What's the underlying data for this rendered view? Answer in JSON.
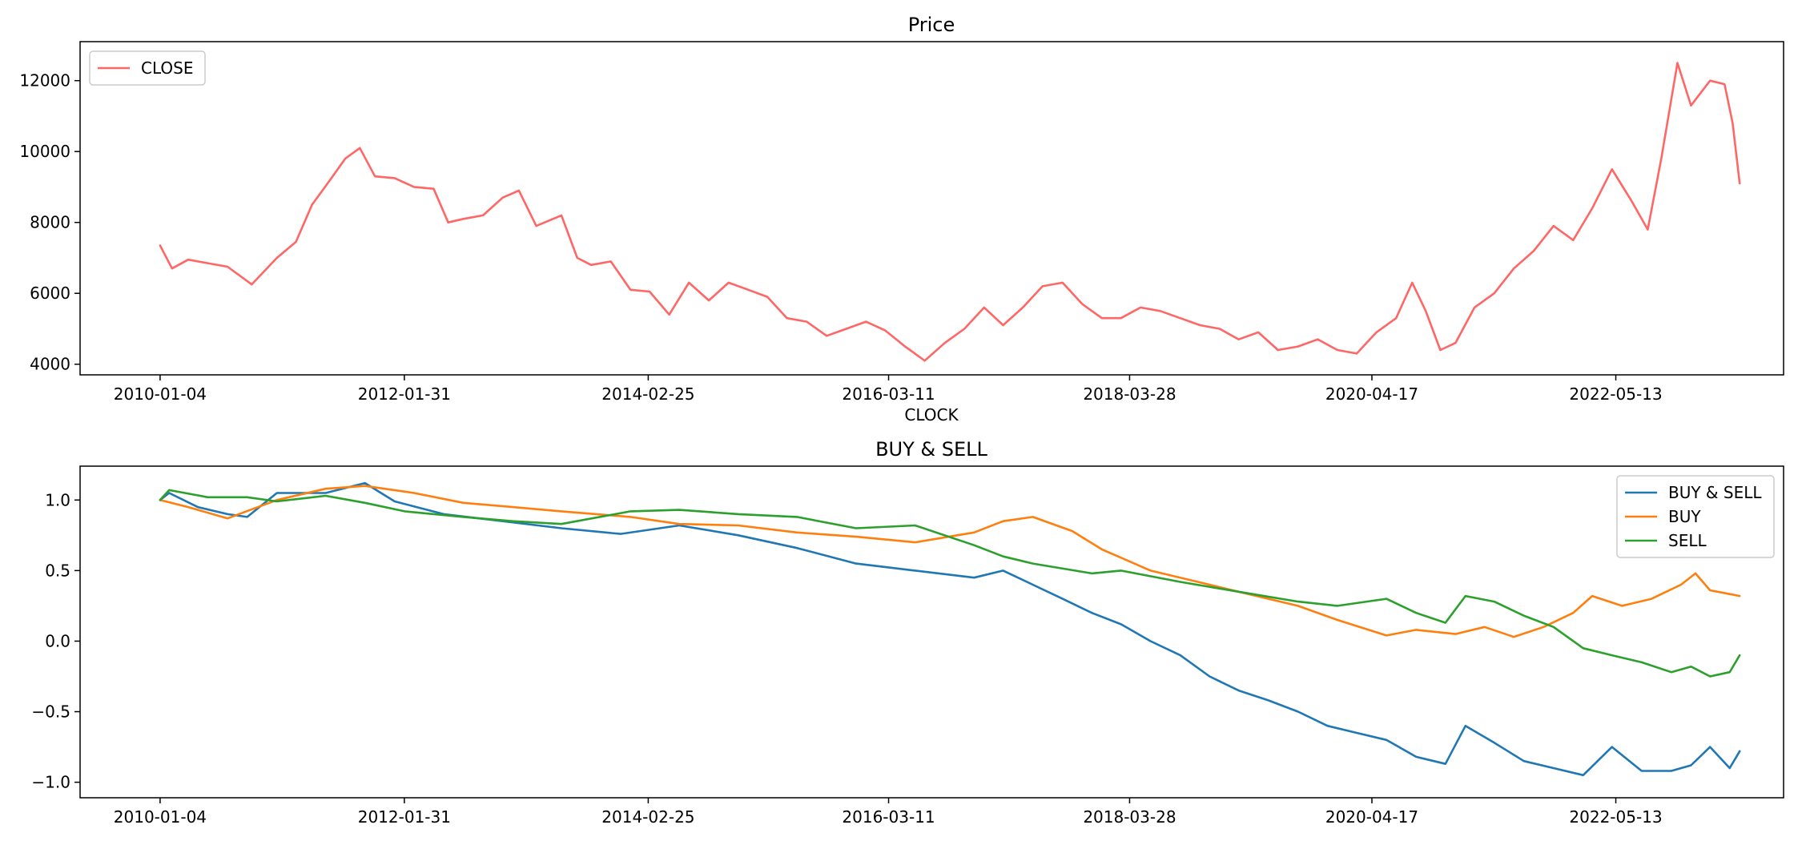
{
  "chart_data": [
    {
      "type": "line",
      "title": "Price",
      "xlabel": "CLOCK",
      "ylabel": "",
      "x_ticks": [
        "2010-01-04",
        "2012-01-31",
        "2014-02-25",
        "2016-03-11",
        "2018-03-28",
        "2020-04-17",
        "2022-05-13"
      ],
      "y_ticks": [
        "4000",
        "6000",
        "8000",
        "10000",
        "12000"
      ],
      "ylim": [
        3700,
        13100
      ],
      "xlim": [
        "2009-05-01",
        "2023-10-15"
      ],
      "grid": false,
      "legend_position": "upper-left",
      "series": [
        {
          "name": "CLOSE",
          "color": "#ff6666",
          "points": [
            [
              "2010-01-04",
              7350
            ],
            [
              "2010-02-10",
              6700
            ],
            [
              "2010-04-01",
              6950
            ],
            [
              "2010-06-01",
              6850
            ],
            [
              "2010-08-01",
              6750
            ],
            [
              "2010-10-15",
              6250
            ],
            [
              "2011-01-01",
              7000
            ],
            [
              "2011-03-01",
              7450
            ],
            [
              "2011-04-20",
              8500
            ],
            [
              "2011-06-15",
              9200
            ],
            [
              "2011-08-01",
              9800
            ],
            [
              "2011-09-15",
              10100
            ],
            [
              "2011-11-01",
              9300
            ],
            [
              "2012-01-01",
              9250
            ],
            [
              "2012-03-01",
              9000
            ],
            [
              "2012-05-01",
              8950
            ],
            [
              "2012-06-15",
              8000
            ],
            [
              "2012-08-01",
              8100
            ],
            [
              "2012-10-01",
              8200
            ],
            [
              "2012-12-01",
              8700
            ],
            [
              "2013-01-20",
              8900
            ],
            [
              "2013-03-15",
              7900
            ],
            [
              "2013-06-01",
              8200
            ],
            [
              "2013-07-20",
              7000
            ],
            [
              "2013-09-01",
              6800
            ],
            [
              "2013-11-01",
              6900
            ],
            [
              "2014-01-01",
              6100
            ],
            [
              "2014-03-01",
              6050
            ],
            [
              "2014-05-01",
              5400
            ],
            [
              "2014-07-01",
              6300
            ],
            [
              "2014-09-01",
              5800
            ],
            [
              "2014-11-01",
              6300
            ],
            [
              "2015-01-01",
              6100
            ],
            [
              "2015-03-01",
              5900
            ],
            [
              "2015-05-01",
              5300
            ],
            [
              "2015-07-01",
              5200
            ],
            [
              "2015-09-01",
              4800
            ],
            [
              "2015-11-01",
              5000
            ],
            [
              "2016-01-01",
              5200
            ],
            [
              "2016-03-01",
              4950
            ],
            [
              "2016-05-01",
              4500
            ],
            [
              "2016-07-01",
              4100
            ],
            [
              "2016-09-01",
              4600
            ],
            [
              "2016-11-01",
              5000
            ],
            [
              "2017-01-01",
              5600
            ],
            [
              "2017-03-01",
              5100
            ],
            [
              "2017-05-01",
              5600
            ],
            [
              "2017-07-01",
              6200
            ],
            [
              "2017-09-01",
              6300
            ],
            [
              "2017-11-01",
              5700
            ],
            [
              "2018-01-01",
              5300
            ],
            [
              "2018-03-01",
              5300
            ],
            [
              "2018-05-01",
              5600
            ],
            [
              "2018-07-01",
              5500
            ],
            [
              "2018-09-01",
              5300
            ],
            [
              "2018-11-01",
              5100
            ],
            [
              "2019-01-01",
              5000
            ],
            [
              "2019-03-01",
              4700
            ],
            [
              "2019-05-01",
              4900
            ],
            [
              "2019-07-01",
              4400
            ],
            [
              "2019-09-01",
              4500
            ],
            [
              "2019-11-01",
              4700
            ],
            [
              "2020-01-01",
              4400
            ],
            [
              "2020-03-01",
              4300
            ],
            [
              "2020-05-01",
              4900
            ],
            [
              "2020-07-01",
              5300
            ],
            [
              "2020-08-20",
              6300
            ],
            [
              "2020-10-01",
              5500
            ],
            [
              "2020-11-15",
              4400
            ],
            [
              "2021-01-01",
              4600
            ],
            [
              "2021-03-01",
              5600
            ],
            [
              "2021-05-01",
              6000
            ],
            [
              "2021-07-01",
              6700
            ],
            [
              "2021-09-01",
              7200
            ],
            [
              "2021-11-01",
              7900
            ],
            [
              "2022-01-01",
              7500
            ],
            [
              "2022-03-01",
              8400
            ],
            [
              "2022-05-01",
              9500
            ],
            [
              "2022-07-01",
              8600
            ],
            [
              "2022-08-20",
              7800
            ],
            [
              "2022-10-01",
              9800
            ],
            [
              "2022-11-20",
              12500
            ],
            [
              "2023-01-01",
              11300
            ],
            [
              "2023-03-01",
              12000
            ],
            [
              "2023-04-15",
              11900
            ],
            [
              "2023-05-10",
              10800
            ],
            [
              "2023-06-01",
              9100
            ]
          ]
        }
      ]
    },
    {
      "type": "line",
      "title": "BUY & SELL",
      "xlabel": "",
      "ylabel": "",
      "x_ticks": [
        "2010-01-04",
        "2012-01-31",
        "2014-02-25",
        "2016-03-11",
        "2018-03-28",
        "2020-04-17",
        "2022-05-13"
      ],
      "y_ticks": [
        "−1.0",
        "−0.5",
        "0.0",
        "0.5",
        "1.0"
      ],
      "ylim": [
        -1.11,
        1.24
      ],
      "xlim": [
        "2009-05-01",
        "2023-10-15"
      ],
      "grid": false,
      "legend_position": "upper-right",
      "series": [
        {
          "name": "BUY & SELL",
          "color": "#1f77b4",
          "points": [
            [
              "2010-01-04",
              1.0
            ],
            [
              "2010-02-01",
              1.05
            ],
            [
              "2010-05-01",
              0.95
            ],
            [
              "2010-08-01",
              0.9
            ],
            [
              "2010-10-01",
              0.88
            ],
            [
              "2011-01-01",
              1.05
            ],
            [
              "2011-06-01",
              1.05
            ],
            [
              "2011-10-01",
              1.12
            ],
            [
              "2012-01-01",
              0.99
            ],
            [
              "2012-06-01",
              0.9
            ],
            [
              "2012-12-01",
              0.85
            ],
            [
              "2013-06-01",
              0.8
            ],
            [
              "2013-12-01",
              0.76
            ],
            [
              "2014-06-01",
              0.82
            ],
            [
              "2014-12-01",
              0.75
            ],
            [
              "2015-06-01",
              0.66
            ],
            [
              "2015-12-01",
              0.55
            ],
            [
              "2016-06-01",
              0.5
            ],
            [
              "2016-12-01",
              0.45
            ],
            [
              "2017-03-01",
              0.5
            ],
            [
              "2017-06-01",
              0.4
            ],
            [
              "2017-09-01",
              0.3
            ],
            [
              "2017-12-01",
              0.2
            ],
            [
              "2018-03-01",
              0.12
            ],
            [
              "2018-06-01",
              0.0
            ],
            [
              "2018-09-01",
              -0.1
            ],
            [
              "2018-12-01",
              -0.25
            ],
            [
              "2019-03-01",
              -0.35
            ],
            [
              "2019-06-01",
              -0.42
            ],
            [
              "2019-09-01",
              -0.5
            ],
            [
              "2019-12-01",
              -0.6
            ],
            [
              "2020-03-01",
              -0.65
            ],
            [
              "2020-06-01",
              -0.7
            ],
            [
              "2020-09-01",
              -0.82
            ],
            [
              "2020-12-01",
              -0.87
            ],
            [
              "2021-02-01",
              -0.6
            ],
            [
              "2021-05-01",
              -0.72
            ],
            [
              "2021-08-01",
              -0.85
            ],
            [
              "2021-11-01",
              -0.9
            ],
            [
              "2022-02-01",
              -0.95
            ],
            [
              "2022-05-01",
              -0.75
            ],
            [
              "2022-08-01",
              -0.92
            ],
            [
              "2022-11-01",
              -0.92
            ],
            [
              "2023-01-01",
              -0.88
            ],
            [
              "2023-03-01",
              -0.75
            ],
            [
              "2023-05-01",
              -0.9
            ],
            [
              "2023-06-01",
              -0.78
            ]
          ]
        },
        {
          "name": "BUY",
          "color": "#ff7f0e",
          "points": [
            [
              "2010-01-04",
              1.0
            ],
            [
              "2010-04-01",
              0.95
            ],
            [
              "2010-08-01",
              0.87
            ],
            [
              "2011-01-01",
              1.0
            ],
            [
              "2011-06-01",
              1.08
            ],
            [
              "2011-10-01",
              1.1
            ],
            [
              "2012-03-01",
              1.05
            ],
            [
              "2012-08-01",
              0.98
            ],
            [
              "2013-01-01",
              0.95
            ],
            [
              "2013-06-01",
              0.92
            ],
            [
              "2014-01-01",
              0.88
            ],
            [
              "2014-06-01",
              0.83
            ],
            [
              "2014-12-01",
              0.82
            ],
            [
              "2015-06-01",
              0.77
            ],
            [
              "2015-12-01",
              0.74
            ],
            [
              "2016-06-01",
              0.7
            ],
            [
              "2016-12-01",
              0.77
            ],
            [
              "2017-03-01",
              0.85
            ],
            [
              "2017-06-01",
              0.88
            ],
            [
              "2017-10-01",
              0.78
            ],
            [
              "2018-01-01",
              0.65
            ],
            [
              "2018-06-01",
              0.5
            ],
            [
              "2018-12-01",
              0.4
            ],
            [
              "2019-03-01",
              0.35
            ],
            [
              "2019-09-01",
              0.25
            ],
            [
              "2020-01-01",
              0.15
            ],
            [
              "2020-06-01",
              0.04
            ],
            [
              "2020-09-01",
              0.08
            ],
            [
              "2021-01-01",
              0.05
            ],
            [
              "2021-04-01",
              0.1
            ],
            [
              "2021-07-01",
              0.03
            ],
            [
              "2021-10-01",
              0.1
            ],
            [
              "2022-01-01",
              0.2
            ],
            [
              "2022-03-01",
              0.32
            ],
            [
              "2022-06-01",
              0.25
            ],
            [
              "2022-09-01",
              0.3
            ],
            [
              "2022-12-01",
              0.4
            ],
            [
              "2023-01-15",
              0.48
            ],
            [
              "2023-03-01",
              0.36
            ],
            [
              "2023-06-01",
              0.32
            ]
          ]
        },
        {
          "name": "SELL",
          "color": "#2ca02c",
          "points": [
            [
              "2010-01-04",
              1.0
            ],
            [
              "2010-02-01",
              1.07
            ],
            [
              "2010-06-01",
              1.02
            ],
            [
              "2010-10-01",
              1.02
            ],
            [
              "2011-01-01",
              0.99
            ],
            [
              "2011-06-01",
              1.03
            ],
            [
              "2011-10-01",
              0.98
            ],
            [
              "2012-02-01",
              0.92
            ],
            [
              "2012-08-01",
              0.88
            ],
            [
              "2013-01-01",
              0.85
            ],
            [
              "2013-06-01",
              0.83
            ],
            [
              "2014-01-01",
              0.92
            ],
            [
              "2014-06-01",
              0.93
            ],
            [
              "2014-12-01",
              0.9
            ],
            [
              "2015-06-01",
              0.88
            ],
            [
              "2015-12-01",
              0.8
            ],
            [
              "2016-06-01",
              0.82
            ],
            [
              "2016-12-01",
              0.68
            ],
            [
              "2017-03-01",
              0.6
            ],
            [
              "2017-06-01",
              0.55
            ],
            [
              "2017-12-01",
              0.48
            ],
            [
              "2018-03-01",
              0.5
            ],
            [
              "2018-09-01",
              0.42
            ],
            [
              "2019-03-01",
              0.35
            ],
            [
              "2019-09-01",
              0.28
            ],
            [
              "2020-01-01",
              0.25
            ],
            [
              "2020-06-01",
              0.3
            ],
            [
              "2020-09-01",
              0.2
            ],
            [
              "2020-12-01",
              0.13
            ],
            [
              "2021-02-01",
              0.32
            ],
            [
              "2021-05-01",
              0.28
            ],
            [
              "2021-08-01",
              0.18
            ],
            [
              "2021-11-01",
              0.1
            ],
            [
              "2022-02-01",
              -0.05
            ],
            [
              "2022-05-01",
              -0.1
            ],
            [
              "2022-08-01",
              -0.15
            ],
            [
              "2022-11-01",
              -0.22
            ],
            [
              "2023-01-01",
              -0.18
            ],
            [
              "2023-03-01",
              -0.25
            ],
            [
              "2023-05-01",
              -0.22
            ],
            [
              "2023-06-01",
              -0.1
            ]
          ]
        }
      ]
    }
  ]
}
